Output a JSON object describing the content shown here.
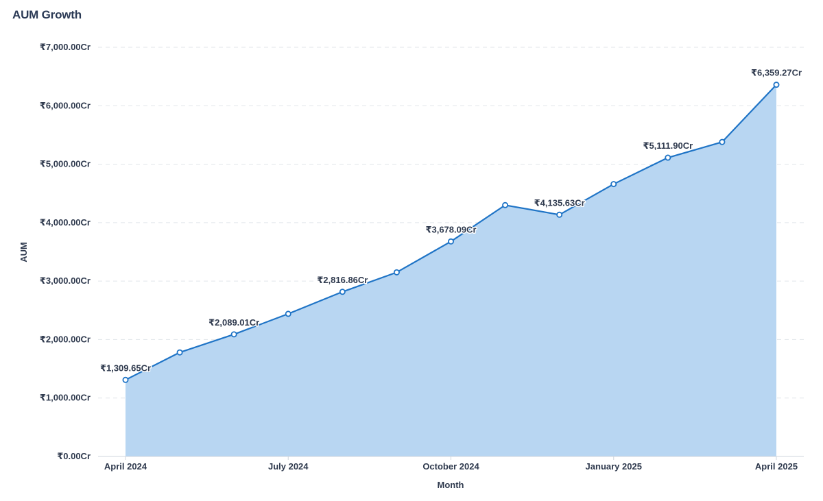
{
  "chart_data": {
    "type": "area",
    "title": "AUM Growth",
    "xlabel": "Month",
    "ylabel": "AUM",
    "ylim": [
      0,
      7000
    ],
    "yticks": [
      0,
      1000,
      2000,
      3000,
      4000,
      5000,
      6000,
      7000
    ],
    "ytick_labels": [
      "₹0.00Cr",
      "₹1,000.00Cr",
      "₹2,000.00Cr",
      "₹3,000.00Cr",
      "₹4,000.00Cr",
      "₹5,000.00Cr",
      "₹6,000.00Cr",
      "₹7,000.00Cr"
    ],
    "x": [
      "2024-04",
      "2024-05",
      "2024-06",
      "2024-07",
      "2024-08",
      "2024-09",
      "2024-10",
      "2024-11",
      "2024-12",
      "2025-01",
      "2025-02",
      "2025-03",
      "2025-04"
    ],
    "xticks": [
      {
        "x": "2024-04",
        "label": "April 2024"
      },
      {
        "x": "2024-07",
        "label": "July 2024"
      },
      {
        "x": "2024-10",
        "label": "October 2024"
      },
      {
        "x": "2025-01",
        "label": "January 2025"
      },
      {
        "x": "2025-04",
        "label": "April 2025"
      }
    ],
    "series": [
      {
        "values": [
          1309.65,
          1780,
          2089.01,
          2440,
          2816.86,
          3150,
          3678.09,
          4300,
          4135.63,
          4660,
          5111.9,
          5380,
          6359.27
        ]
      }
    ],
    "data_labels": [
      {
        "index": 0,
        "text": "₹1,309.65Cr"
      },
      {
        "index": 2,
        "text": "₹2,089.01Cr"
      },
      {
        "index": 4,
        "text": "₹2,816.86Cr"
      },
      {
        "index": 6,
        "text": "₹3,678.09Cr"
      },
      {
        "index": 8,
        "text": "₹4,135.63Cr"
      },
      {
        "index": 10,
        "text": "₹5,111.90Cr"
      },
      {
        "index": 12,
        "text": "₹6,359.27Cr"
      }
    ],
    "grid": true,
    "colors": {
      "line": "#1f74c6",
      "fill": "#b8d6f2",
      "grid": "#e1e5ea"
    }
  }
}
